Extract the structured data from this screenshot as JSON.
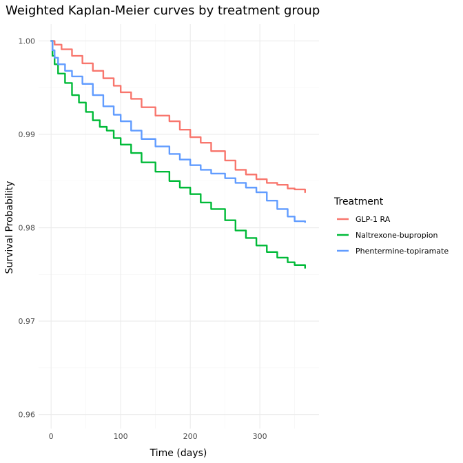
{
  "chart_data": {
    "type": "line",
    "title": "Weighted Kaplan-Meier curves by treatment group",
    "xlabel": "Time (days)",
    "ylabel": "Survival Probability",
    "xlim": [
      -18,
      385
    ],
    "ylim": [
      0.9585,
      1.0018
    ],
    "x_ticks": [
      0,
      100,
      200,
      300
    ],
    "x_tick_labels": [
      "0",
      "100",
      "200",
      "300"
    ],
    "y_ticks": [
      0.96,
      0.97,
      0.98,
      0.99,
      1.0
    ],
    "y_tick_labels": [
      "0.96",
      "0.97",
      "0.98",
      "0.99",
      "1.00"
    ],
    "grid": true,
    "legend": {
      "title": "Treatment",
      "position": "right"
    },
    "series": [
      {
        "name": "GLP-1 RA",
        "color": "#F8766D",
        "x": [
          0,
          5,
          15,
          30,
          45,
          60,
          75,
          90,
          100,
          115,
          130,
          150,
          170,
          185,
          200,
          215,
          230,
          250,
          265,
          280,
          295,
          310,
          325,
          340,
          350,
          365
        ],
        "y": [
          1.0,
          0.9996,
          0.9991,
          0.9984,
          0.9976,
          0.9968,
          0.996,
          0.9952,
          0.9945,
          0.9938,
          0.9929,
          0.992,
          0.9914,
          0.9905,
          0.9897,
          0.9891,
          0.9882,
          0.9872,
          0.9862,
          0.9857,
          0.9852,
          0.9848,
          0.9846,
          0.9842,
          0.9841,
          0.9838
        ]
      },
      {
        "name": "Naltrexone-bupropion",
        "color": "#00BA38",
        "x": [
          0,
          2,
          5,
          10,
          20,
          30,
          40,
          50,
          60,
          70,
          80,
          90,
          100,
          115,
          130,
          150,
          170,
          185,
          200,
          215,
          230,
          250,
          265,
          280,
          295,
          310,
          325,
          340,
          350,
          365
        ],
        "y": [
          1.0,
          0.9984,
          0.9975,
          0.9965,
          0.9955,
          0.9942,
          0.9934,
          0.9924,
          0.9915,
          0.9908,
          0.9904,
          0.9896,
          0.9889,
          0.988,
          0.987,
          0.986,
          0.985,
          0.9843,
          0.9836,
          0.9827,
          0.982,
          0.9808,
          0.9797,
          0.9789,
          0.9781,
          0.9774,
          0.9768,
          0.9763,
          0.976,
          0.9757
        ]
      },
      {
        "name": "Phentermine-topiramate",
        "color": "#619CFF",
        "x": [
          0,
          2,
          5,
          10,
          20,
          30,
          45,
          60,
          75,
          90,
          100,
          115,
          130,
          150,
          170,
          185,
          200,
          215,
          230,
          250,
          265,
          280,
          295,
          310,
          325,
          340,
          350,
          365
        ],
        "y": [
          1.0,
          0.999,
          0.9982,
          0.9975,
          0.9968,
          0.9962,
          0.9954,
          0.9942,
          0.993,
          0.9921,
          0.9914,
          0.9904,
          0.9895,
          0.9887,
          0.9879,
          0.9873,
          0.9867,
          0.9862,
          0.9858,
          0.9853,
          0.9848,
          0.9843,
          0.9838,
          0.9829,
          0.982,
          0.9812,
          0.9807,
          0.9806
        ]
      }
    ]
  }
}
